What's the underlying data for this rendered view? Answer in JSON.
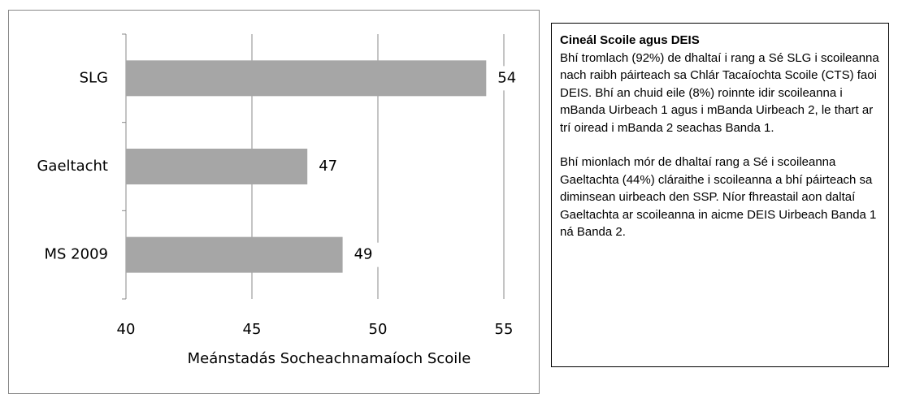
{
  "chart_data": {
    "type": "barh",
    "categories": [
      "SLG",
      "Gaeltacht",
      "MS 2009"
    ],
    "values": [
      54.3,
      47.2,
      48.6
    ],
    "value_labels": [
      "54",
      "47",
      "49"
    ],
    "color": "#a6a6a6",
    "xlim": [
      40,
      55
    ],
    "xticks": [
      40,
      45,
      50,
      55
    ],
    "grid": true,
    "x_label": "Meánstadás Socheachnamaíoch Scoile"
  },
  "text_box": {
    "title": "Cineál Scoile agus DEIS",
    "paragraphs": [
      "Bhí tromlach (92%) de dhaltaí i rang a Sé SLG i scoileanna nach raibh páirteach sa Chlár Tacaíochta Scoile (CTS) faoi DEIS. Bhí an chuid eile (8%) roinnte idir scoileanna i mBanda Uirbeach 1 agus i mBanda Uirbeach 2, le thart ar trí oiread i mBanda 2 seachas Banda 1.",
      "Bhí mionlach mór de dhaltaí rang a Sé i scoileanna Gaeltachta (44%) cláraithe i scoileanna a bhí páirteach sa diminsean uirbeach den SSP. Níor fhreastail aon daltaí Gaeltachta ar scoileanna in aicme DEIS Uirbeach Banda 1 ná Banda 2."
    ]
  }
}
